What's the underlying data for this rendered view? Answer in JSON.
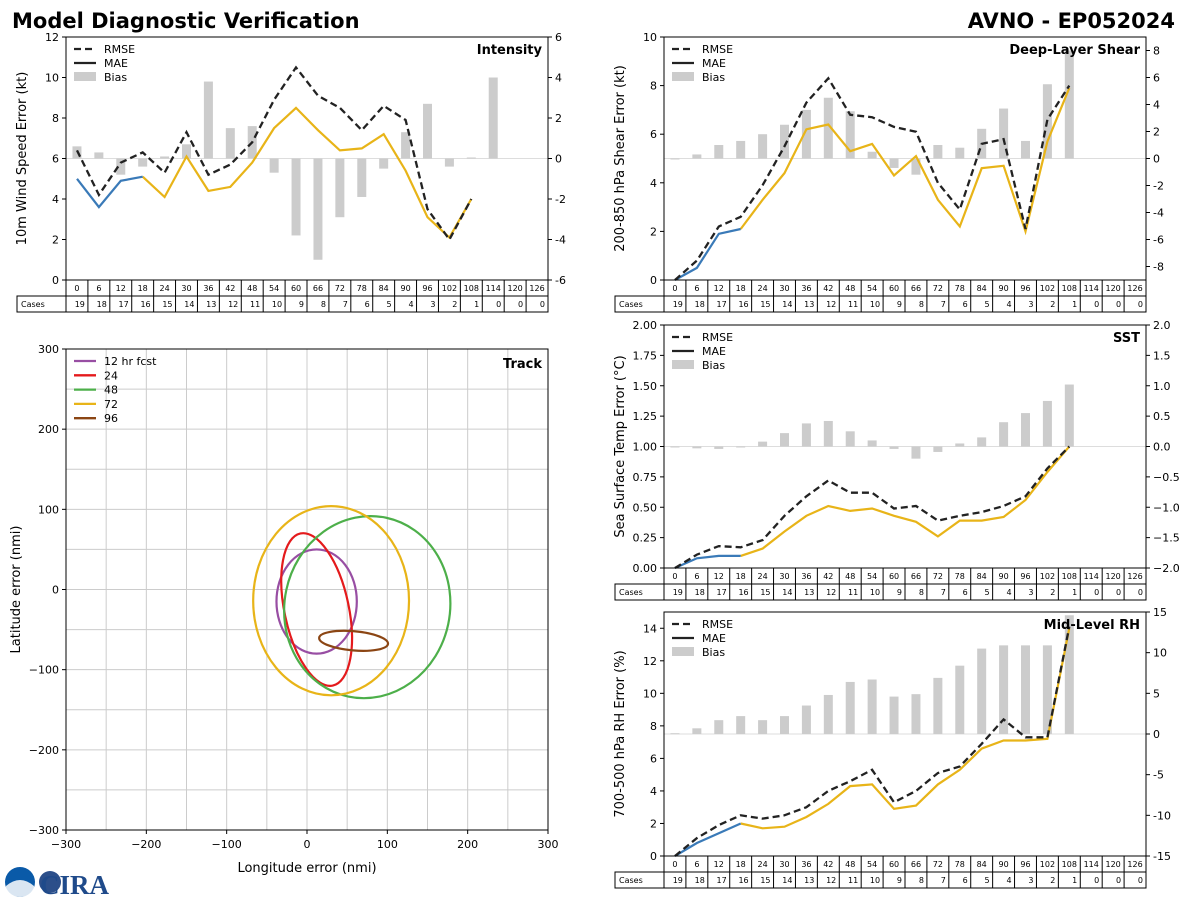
{
  "header": {
    "title": "Model Diagnostic Verification",
    "storm_id": "AVNO - EP052024"
  },
  "logo": {
    "text": "CIRA"
  },
  "colors": {
    "rmse": "#222222",
    "mae_blue": "#3a7ab8",
    "mae_yellow": "#e8b418",
    "bias": "#cccccc",
    "track": [
      "#984ea3",
      "#e41a1c",
      "#4daf4a",
      "#e8b418",
      "#8b4513"
    ]
  },
  "chart_data": [
    {
      "id": "intensity",
      "type": "line",
      "title": "Intensity",
      "ylabel": "10m Wind Speed Error (kt)",
      "ylim": [
        0,
        12
      ],
      "yticks": [
        0,
        2,
        4,
        6,
        8,
        10,
        12
      ],
      "ylim2": [
        -6,
        6
      ],
      "yticks2": [
        -6,
        -4,
        -2,
        0,
        2,
        4,
        6
      ],
      "legend": [
        "RMSE",
        "MAE",
        "Bias"
      ],
      "categories": [
        "0",
        "6",
        "12",
        "18",
        "24",
        "30",
        "36",
        "42",
        "48",
        "54",
        "60",
        "66",
        "72",
        "78",
        "84",
        "90",
        "96",
        "102",
        "108",
        "114",
        "120",
        "126"
      ],
      "cases_label": "Cases",
      "cases": [
        "19",
        "18",
        "17",
        "16",
        "15",
        "14",
        "13",
        "12",
        "11",
        "10",
        "9",
        "8",
        "7",
        "6",
        "5",
        "4",
        "3",
        "2",
        "1",
        "0",
        "0",
        "0"
      ],
      "rmse": [
        6.4,
        4.2,
        5.8,
        6.3,
        5.3,
        7.3,
        5.2,
        5.7,
        6.8,
        8.9,
        10.5,
        9.1,
        8.5,
        7.4,
        8.6,
        7.9,
        3.5,
        2.0,
        4.0,
        null,
        null,
        null
      ],
      "mae": [
        5.0,
        3.6,
        4.9,
        5.1,
        4.1,
        6.1,
        4.4,
        4.6,
        5.8,
        7.5,
        8.5,
        7.4,
        6.4,
        6.5,
        7.2,
        5.4,
        3.1,
        2.1,
        4.0,
        null,
        null,
        null
      ],
      "mae_blue_until": 3,
      "bias": [
        0.6,
        0.3,
        -0.8,
        -0.4,
        0.1,
        0.7,
        3.8,
        1.5,
        1.6,
        -0.7,
        -3.8,
        -5.0,
        -2.9,
        -1.9,
        -0.5,
        1.3,
        2.7,
        -0.4,
        0.05,
        4.0,
        null,
        null
      ]
    },
    {
      "id": "shear",
      "type": "line",
      "title": "Deep-Layer Shear",
      "ylabel": "200-850 hPa Shear Error (kt)",
      "ylim": [
        0,
        10
      ],
      "yticks": [
        0,
        2,
        4,
        6,
        8,
        10
      ],
      "ylim2": [
        -9,
        9
      ],
      "yticks2": [
        -8,
        -6,
        -4,
        -2,
        0,
        2,
        4,
        6,
        8
      ],
      "legend": [
        "RMSE",
        "MAE",
        "Bias"
      ],
      "categories": [
        "0",
        "6",
        "12",
        "18",
        "24",
        "30",
        "36",
        "42",
        "48",
        "54",
        "60",
        "66",
        "72",
        "78",
        "84",
        "90",
        "96",
        "102",
        "108",
        "114",
        "120",
        "126"
      ],
      "cases_label": "Cases",
      "cases": [
        "19",
        "18",
        "17",
        "16",
        "15",
        "14",
        "13",
        "12",
        "11",
        "10",
        "9",
        "8",
        "7",
        "6",
        "5",
        "4",
        "3",
        "2",
        "1",
        "0",
        "0",
        "0"
      ],
      "rmse": [
        0.0,
        0.8,
        2.2,
        2.6,
        3.9,
        5.5,
        7.3,
        8.3,
        6.8,
        6.7,
        6.3,
        6.1,
        4.0,
        2.9,
        5.6,
        5.8,
        2.1,
        6.6,
        8.0,
        null,
        null,
        null
      ],
      "mae": [
        0.0,
        0.5,
        1.9,
        2.1,
        3.3,
        4.4,
        6.2,
        6.4,
        5.3,
        5.6,
        4.3,
        5.1,
        3.3,
        2.2,
        4.6,
        4.7,
        2.0,
        5.7,
        7.9,
        null,
        null,
        null
      ],
      "mae_blue_until": 3,
      "bias": [
        0.0,
        0.3,
        1.0,
        1.3,
        1.8,
        2.5,
        3.6,
        4.5,
        3.5,
        0.5,
        -0.7,
        -1.2,
        1.0,
        0.8,
        2.2,
        3.7,
        1.3,
        5.5,
        8.0,
        null,
        null,
        null
      ]
    },
    {
      "id": "sst",
      "type": "line",
      "title": "SST",
      "ylabel": "Sea Surface Temp Error (°C)",
      "ylim": [
        0,
        2
      ],
      "yticks": [
        "0.00",
        "0.25",
        "0.50",
        "0.75",
        "1.00",
        "1.25",
        "1.50",
        "1.75",
        "2.00"
      ],
      "ylim2": [
        -2,
        2
      ],
      "yticks2": [
        "−2.0",
        "−1.5",
        "−1.0",
        "−0.5",
        "0.0",
        "0.5",
        "1.0",
        "1.5",
        "2.0"
      ],
      "legend": [
        "RMSE",
        "MAE",
        "Bias"
      ],
      "categories": [
        "0",
        "6",
        "12",
        "18",
        "24",
        "30",
        "36",
        "42",
        "48",
        "54",
        "60",
        "66",
        "72",
        "78",
        "84",
        "90",
        "96",
        "102",
        "108",
        "114",
        "120",
        "126"
      ],
      "cases_label": "Cases",
      "cases": [
        "19",
        "18",
        "17",
        "16",
        "15",
        "14",
        "13",
        "12",
        "11",
        "10",
        "9",
        "8",
        "7",
        "6",
        "5",
        "4",
        "3",
        "2",
        "1",
        "0",
        "0",
        "0"
      ],
      "rmse": [
        0.0,
        0.11,
        0.18,
        0.17,
        0.23,
        0.43,
        0.59,
        0.72,
        0.62,
        0.62,
        0.49,
        0.51,
        0.39,
        0.43,
        0.46,
        0.51,
        0.59,
        0.82,
        1.0,
        null,
        null,
        null
      ],
      "mae": [
        0.0,
        0.08,
        0.1,
        0.1,
        0.16,
        0.3,
        0.43,
        0.51,
        0.47,
        0.49,
        0.43,
        0.38,
        0.26,
        0.39,
        0.39,
        0.42,
        0.56,
        0.79,
        1.0,
        null,
        null,
        null
      ],
      "mae_blue_until": 3,
      "bias": [
        0.0,
        -0.03,
        -0.04,
        -0.01,
        0.08,
        0.22,
        0.38,
        0.42,
        0.25,
        0.1,
        -0.04,
        -0.2,
        -0.09,
        0.05,
        0.15,
        0.4,
        0.55,
        0.75,
        1.02,
        null,
        null,
        null
      ]
    },
    {
      "id": "rh",
      "type": "line",
      "title": "Mid-Level RH",
      "ylabel": "700-500 hPa RH Error (%)",
      "ylim": [
        0,
        15
      ],
      "yticks": [
        0,
        2,
        4,
        6,
        8,
        10,
        12,
        14
      ],
      "ylim2": [
        -15,
        15
      ],
      "yticks2": [
        -15,
        -10,
        -5,
        0,
        5,
        10,
        15
      ],
      "legend": [
        "RMSE",
        "MAE",
        "Bias"
      ],
      "categories": [
        "0",
        "6",
        "12",
        "18",
        "24",
        "30",
        "36",
        "42",
        "48",
        "54",
        "60",
        "66",
        "72",
        "78",
        "84",
        "90",
        "96",
        "102",
        "108",
        "114",
        "120",
        "126"
      ],
      "cases_label": "Cases",
      "cases": [
        "19",
        "18",
        "17",
        "16",
        "15",
        "14",
        "13",
        "12",
        "11",
        "10",
        "9",
        "8",
        "7",
        "6",
        "5",
        "4",
        "3",
        "2",
        "1",
        "0",
        "0",
        "0"
      ],
      "rmse": [
        0.0,
        1.1,
        1.9,
        2.5,
        2.3,
        2.5,
        3.0,
        4.0,
        4.6,
        5.3,
        3.3,
        4.0,
        5.1,
        5.5,
        6.9,
        8.4,
        7.3,
        7.3,
        14.1,
        null,
        null,
        null
      ],
      "mae": [
        0.0,
        0.8,
        1.4,
        2.0,
        1.7,
        1.8,
        2.4,
        3.2,
        4.3,
        4.4,
        2.9,
        3.1,
        4.4,
        5.3,
        6.6,
        7.1,
        7.1,
        7.2,
        14.0,
        null,
        null,
        null
      ],
      "mae_blue_until": 3,
      "bias": [
        0.1,
        0.7,
        1.7,
        2.2,
        1.7,
        2.2,
        3.5,
        4.8,
        6.4,
        6.7,
        4.6,
        4.9,
        6.9,
        8.4,
        10.5,
        10.9,
        10.9,
        10.9,
        14.6,
        null,
        null,
        null
      ]
    },
    {
      "id": "track",
      "type": "line",
      "title": "Track",
      "xlabel": "Longitude error (nmi)",
      "ylabel": "Latitude error (nmi)",
      "xlim": [
        -300,
        300
      ],
      "ylim": [
        -300,
        300
      ],
      "xticks": [
        "−300",
        "−200",
        "−100",
        "0",
        "100",
        "200",
        "300"
      ],
      "yticks": [
        "−300",
        "−200",
        "−100",
        "0",
        "100",
        "200",
        "300"
      ],
      "legend": [
        "12 hr fcst",
        "24",
        "48",
        "72",
        "96"
      ],
      "ellipses": [
        {
          "label": "12 hr fcst",
          "cx": 12,
          "cy": -15,
          "rx": 50,
          "ry": 65,
          "angle": 0
        },
        {
          "label": "24",
          "cx": 12,
          "cy": -25,
          "rx": 40,
          "ry": 97,
          "angle": -12
        },
        {
          "label": "48",
          "cx": 75,
          "cy": -22,
          "rx": 103,
          "ry": 114,
          "angle": 12
        },
        {
          "label": "72",
          "cx": 30,
          "cy": -14,
          "rx": 97,
          "ry": 118,
          "angle": 0
        },
        {
          "label": "96",
          "cx": 58,
          "cy": -64,
          "rx": 43,
          "ry": 12,
          "angle": 5
        }
      ]
    }
  ]
}
